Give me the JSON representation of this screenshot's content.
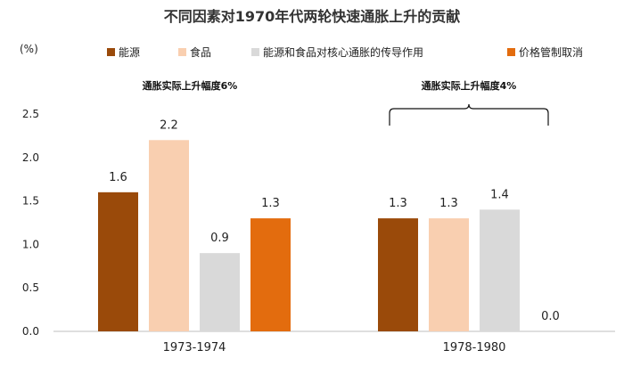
{
  "chart_data": {
    "type": "bar",
    "title": "不同因素对1970年代两轮快速通胀上升的贡献",
    "ylabel": "(%)",
    "ylim": [
      0,
      2.5
    ],
    "yticks": [
      "0.0",
      "0.5",
      "1.0",
      "1.5",
      "2.0",
      "2.5"
    ],
    "categories": [
      "1973-1974",
      "1978-1980"
    ],
    "series": [
      {
        "name": "能源",
        "color": "#9a4a0a",
        "values": [
          1.6,
          1.3
        ],
        "labels": [
          "1.6",
          "1.3"
        ]
      },
      {
        "name": "食品",
        "color": "#f9cfb0",
        "values": [
          2.2,
          1.3
        ],
        "labels": [
          "2.2",
          "1.3"
        ]
      },
      {
        "name": "能源和食品对核心通胀的传导作用",
        "color": "#d9d9d9",
        "values": [
          0.9,
          1.4
        ],
        "labels": [
          "0.9",
          "1.4"
        ]
      },
      {
        "name": "价格管制取消",
        "color": "#e36c0e",
        "values": [
          1.3,
          0.0
        ],
        "labels": [
          "1.3",
          "0.0"
        ]
      }
    ],
    "annotations": [
      "通胀实际上升幅度6%",
      "通胀实际上升幅度4%"
    ],
    "grid": false,
    "legend": "top"
  }
}
